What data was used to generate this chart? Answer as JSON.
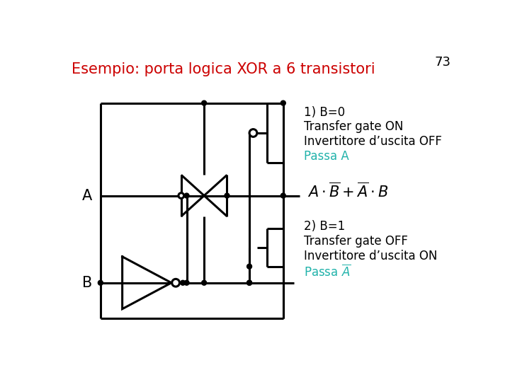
{
  "title": "Esempio: porta logica XOR a 6 transistori",
  "title_color": "#cc0000",
  "page_number": "73",
  "bg": "#ffffff",
  "black": "#000000",
  "teal": "#20B2AA",
  "ann1": [
    "1) B=0",
    "Transfer gate ON",
    "Invertitore d’uscita OFF",
    "Passa A"
  ],
  "ann2": [
    "2) B=1",
    "Transfer gate OFF",
    "Invertitore d’uscita ON"
  ]
}
